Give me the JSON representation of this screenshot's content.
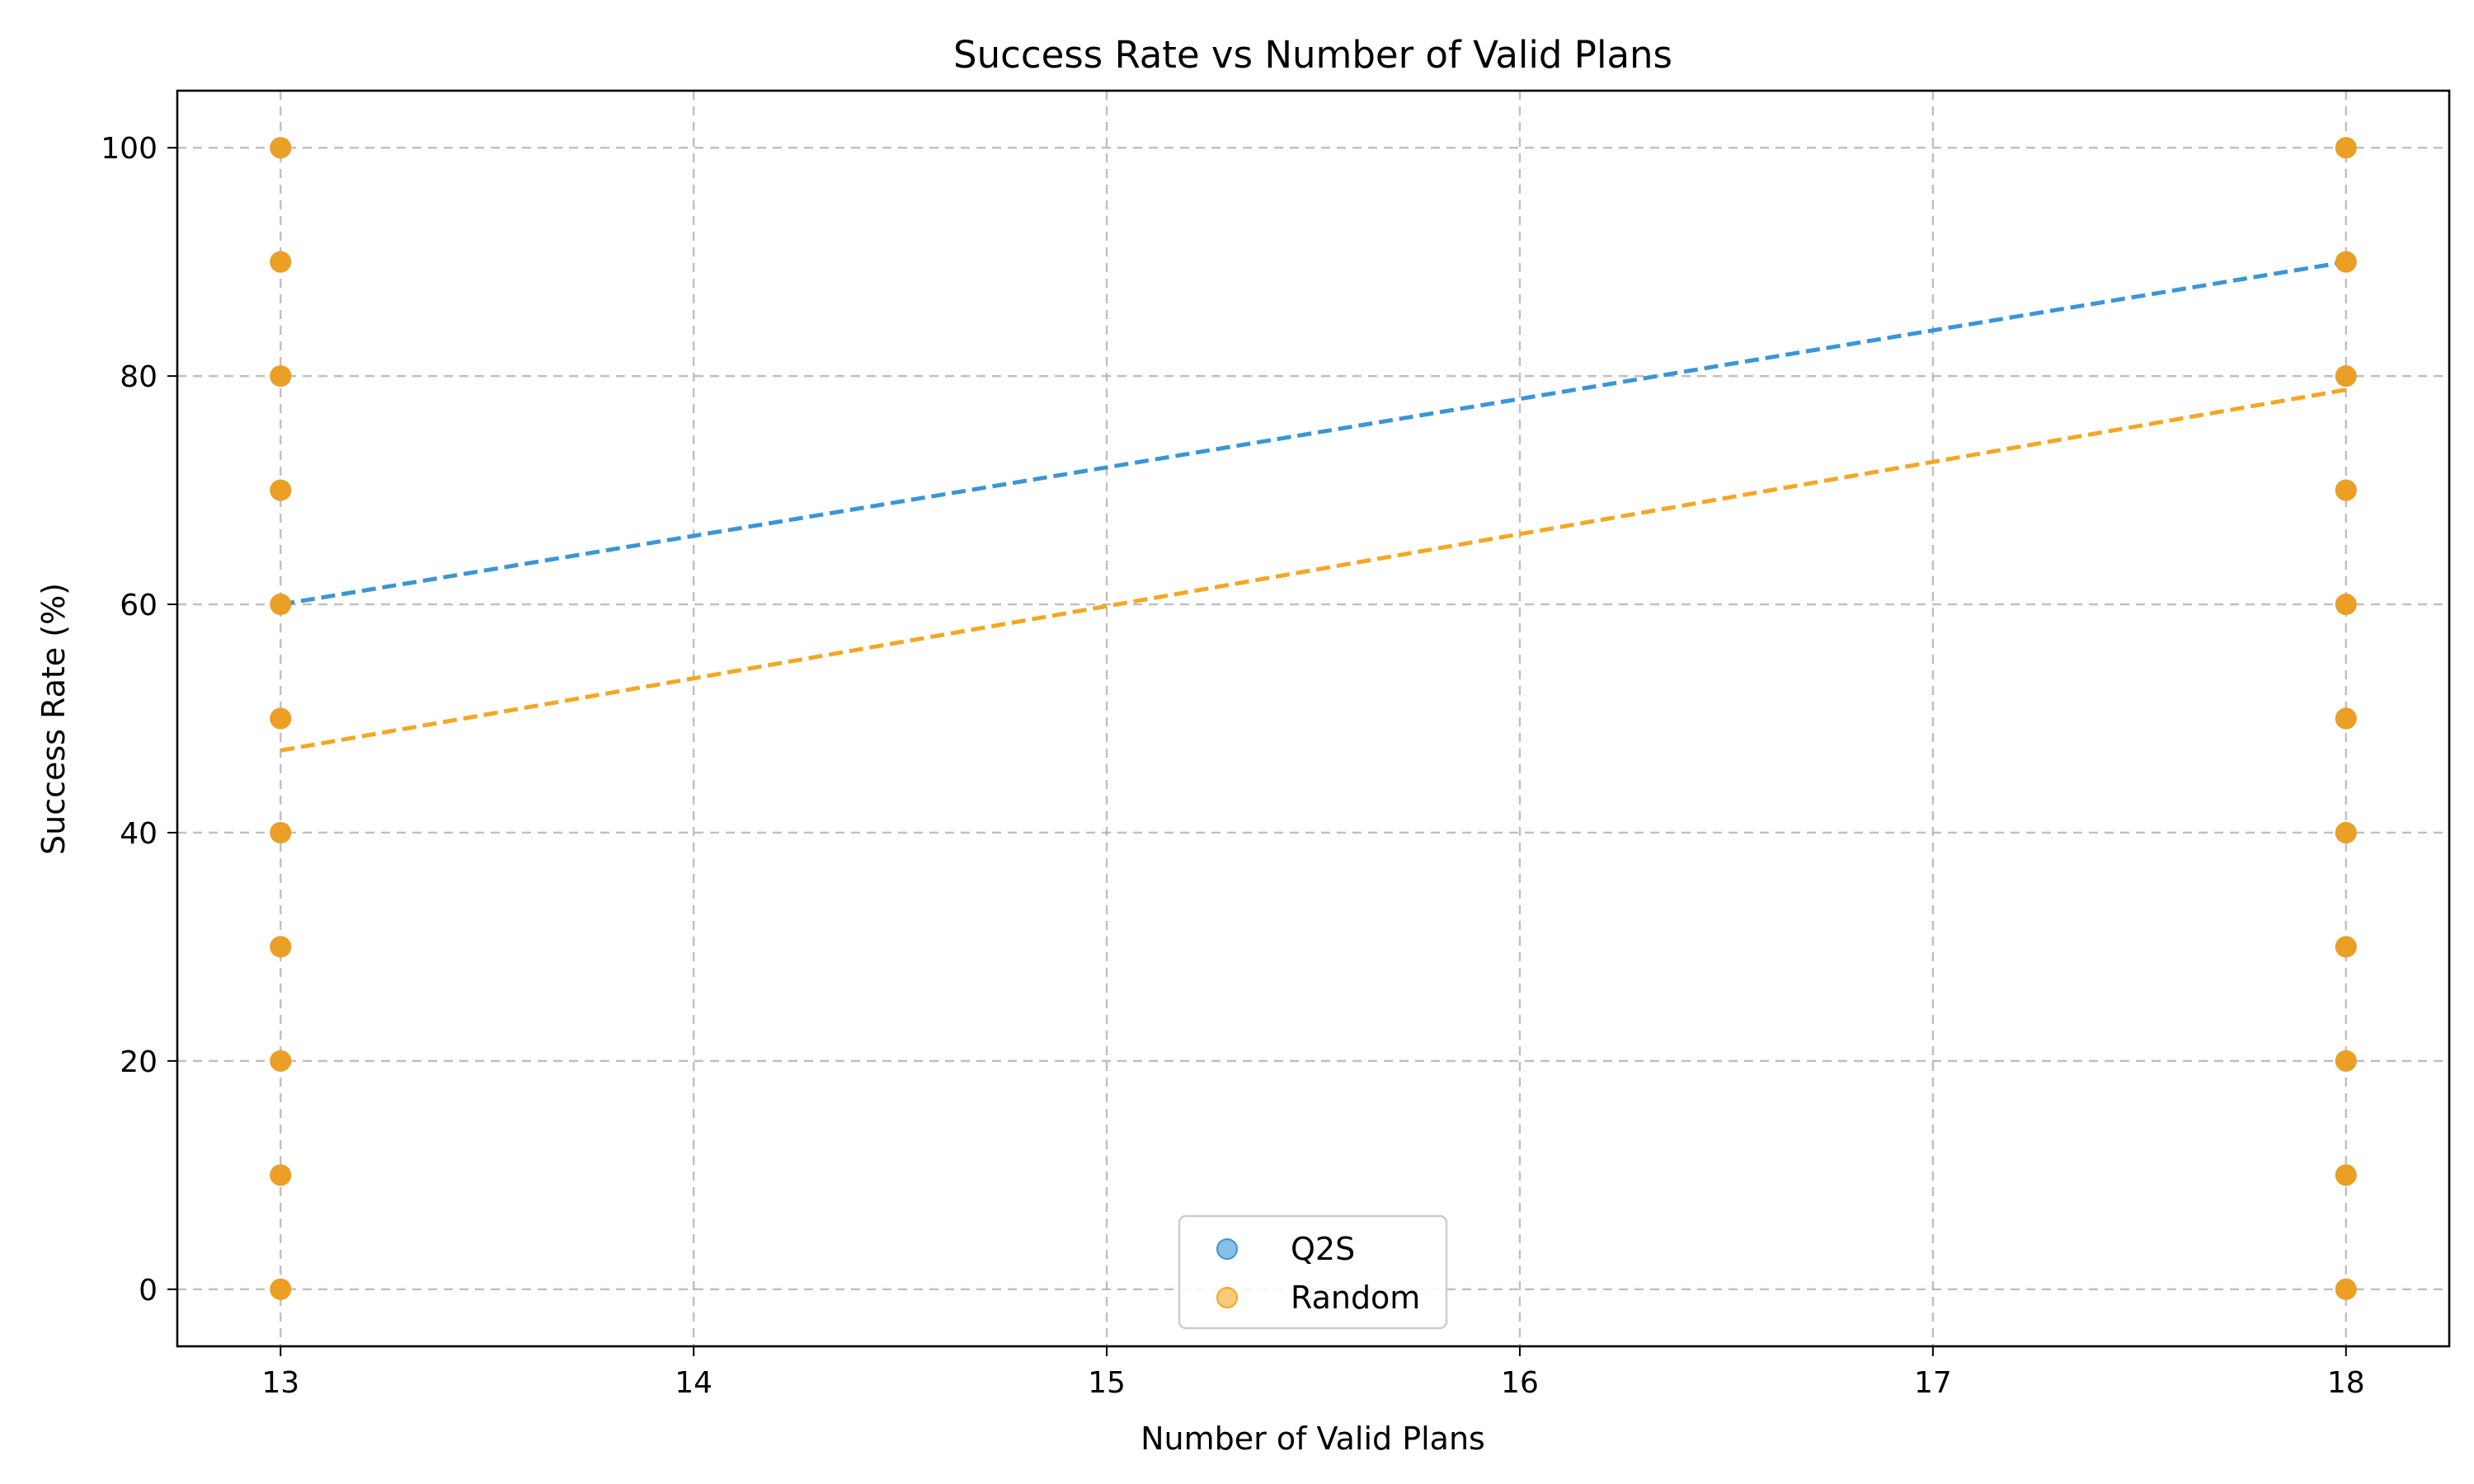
{
  "chart_data": {
    "type": "scatter",
    "title": "Success Rate vs Number of Valid Plans",
    "xlabel": "Number of Valid Plans",
    "ylabel": "Success Rate (%)",
    "xlim": [
      12.75,
      18.25
    ],
    "ylim": [
      -5,
      105
    ],
    "x_ticks": [
      13,
      14,
      15,
      16,
      17,
      18
    ],
    "y_ticks": [
      0,
      20,
      40,
      60,
      80,
      100
    ],
    "grid": true,
    "legend_position": "bottom-center",
    "series": [
      {
        "name": "Q2S",
        "color": "#3a96d6",
        "points": [
          {
            "x": 13,
            "y": 0
          },
          {
            "x": 13,
            "y": 10
          },
          {
            "x": 13,
            "y": 20
          },
          {
            "x": 13,
            "y": 30
          },
          {
            "x": 13,
            "y": 40
          },
          {
            "x": 13,
            "y": 50
          },
          {
            "x": 13,
            "y": 60
          },
          {
            "x": 13,
            "y": 70
          },
          {
            "x": 13,
            "y": 80
          },
          {
            "x": 13,
            "y": 90
          },
          {
            "x": 13,
            "y": 100
          },
          {
            "x": 18,
            "y": 0
          },
          {
            "x": 18,
            "y": 10
          },
          {
            "x": 18,
            "y": 20
          },
          {
            "x": 18,
            "y": 30
          },
          {
            "x": 18,
            "y": 40
          },
          {
            "x": 18,
            "y": 50
          },
          {
            "x": 18,
            "y": 60
          },
          {
            "x": 18,
            "y": 70
          },
          {
            "x": 18,
            "y": 80
          },
          {
            "x": 18,
            "y": 90
          },
          {
            "x": 18,
            "y": 100
          }
        ],
        "trend": [
          {
            "x": 13,
            "y": 60
          },
          {
            "x": 18,
            "y": 90
          }
        ]
      },
      {
        "name": "Random",
        "color": "#f5a623",
        "points": [
          {
            "x": 13,
            "y": 0
          },
          {
            "x": 13,
            "y": 10
          },
          {
            "x": 13,
            "y": 20
          },
          {
            "x": 13,
            "y": 30
          },
          {
            "x": 13,
            "y": 40
          },
          {
            "x": 13,
            "y": 50
          },
          {
            "x": 13,
            "y": 60
          },
          {
            "x": 13,
            "y": 70
          },
          {
            "x": 13,
            "y": 80
          },
          {
            "x": 13,
            "y": 90
          },
          {
            "x": 13,
            "y": 100
          },
          {
            "x": 18,
            "y": 0
          },
          {
            "x": 18,
            "y": 10
          },
          {
            "x": 18,
            "y": 20
          },
          {
            "x": 18,
            "y": 30
          },
          {
            "x": 18,
            "y": 40
          },
          {
            "x": 18,
            "y": 50
          },
          {
            "x": 18,
            "y": 60
          },
          {
            "x": 18,
            "y": 70
          },
          {
            "x": 18,
            "y": 80
          },
          {
            "x": 18,
            "y": 90
          },
          {
            "x": 18,
            "y": 100
          }
        ],
        "trend": [
          {
            "x": 13,
            "y": 47.2
          },
          {
            "x": 18,
            "y": 78.8
          }
        ]
      }
    ]
  }
}
